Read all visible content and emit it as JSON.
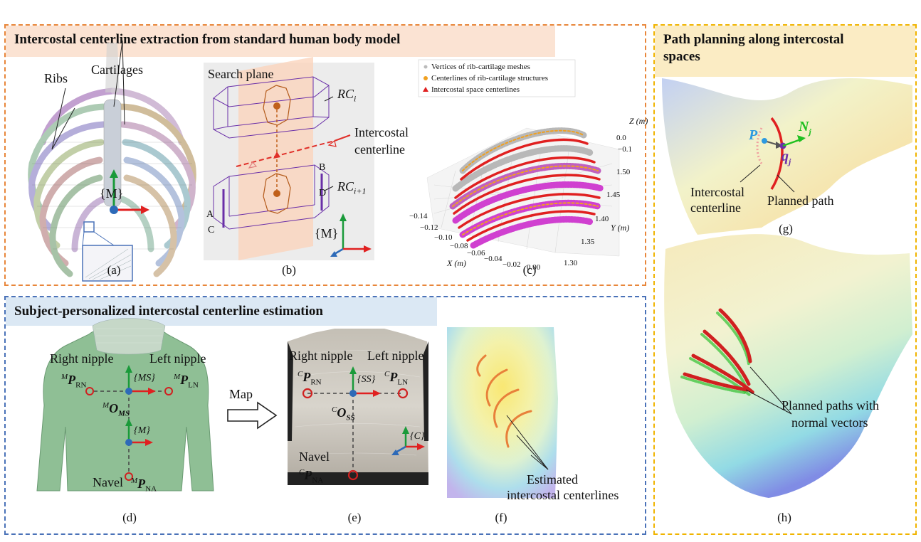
{
  "sections": {
    "top": {
      "title": "Intercostal centerline extraction from standard human body model",
      "border": "#e8863a",
      "fill": "#fbe3d3"
    },
    "bottom": {
      "title": "Subject-personalized intercostal centerline estimation",
      "border": "#4a72b8",
      "fill": "#dbe8f4"
    },
    "right": {
      "title_line1": "Path planning along intercostal",
      "title_line2": "spaces",
      "border": "#f0b400",
      "fill": "#fbecc4"
    }
  },
  "panel_a": {
    "caption": "(a)",
    "ribs": "Ribs",
    "cartilages": "Cartilages",
    "frame": "{M}"
  },
  "panel_b": {
    "caption": "(b)",
    "search_plane": "Search plane",
    "rc_i": "RC",
    "rc_i_sub": "i",
    "rc_i1": "RC",
    "rc_i1_sub": "i+1",
    "intercostal": "Intercostal",
    "centerline": "centerline",
    "A": "A",
    "B": "B",
    "C": "C",
    "D": "D",
    "frame": "{M}"
  },
  "panel_c": {
    "caption": "(c)",
    "legend": [
      "Vertices of rib-cartilage meshes",
      "Centerlines of rib-cartilage structures",
      "Intercostal space centerlines"
    ],
    "x_ticks": [
      "−0.14",
      "−0.12",
      "−0.10",
      "−0.08",
      "−0.06",
      "−0.04",
      "−0.02",
      "0.00"
    ],
    "y_ticks": [
      "1.30",
      "1.35",
      "1.40",
      "1.45",
      "1.50"
    ],
    "z_ticks": [
      "−0.1",
      "0.0"
    ],
    "xlabel": "X (m)",
    "ylabel": "Y (m)",
    "zlabel": "Z (m)"
  },
  "panel_d": {
    "caption": "(d)",
    "right_nipple": "Right nipple",
    "left_nipple": "Left nipple",
    "p_rn": "MPRN",
    "p_ln": "MPLN",
    "o_ms": "MOMS",
    "ms_frame": "{MS}",
    "m_frame": "{M}",
    "navel": "Navel",
    "p_na": "MPNA"
  },
  "map_label": "Map",
  "panel_e": {
    "caption": "(e)",
    "right_nipple": "Right nipple",
    "left_nipple": "Left nipple",
    "p_rn": "CPRN",
    "p_ln": "CPLN",
    "o_ss": "COSS",
    "ss_frame": "{SS}",
    "c_frame": "{C}",
    "navel": "Navel",
    "p_na": "CPNA"
  },
  "panel_f": {
    "caption": "(f)",
    "label_line1": "Estimated",
    "label_line2": "intercostal centerlines"
  },
  "panel_g": {
    "caption": "(g)",
    "P": "P",
    "N": "N",
    "N_sub": "j",
    "q": "q",
    "q_sub": "j",
    "intercostal": "Intercostal",
    "centerline": "centerline",
    "planned": "Planned path"
  },
  "panel_h": {
    "caption": "(h)",
    "label_line1": "Planned paths with",
    "label_line2": "normal vectors"
  }
}
